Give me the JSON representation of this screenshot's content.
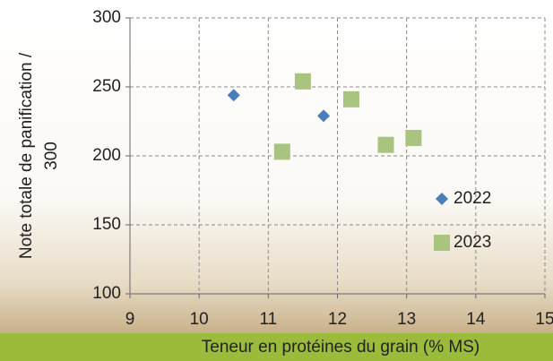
{
  "chart_data": {
    "type": "scatter",
    "x_label": "Teneur en protéines du grain (% MS)",
    "y_label": [
      "Note totale de panification /",
      "300"
    ],
    "xlim": [
      9,
      15
    ],
    "xticks": [
      9,
      10,
      11,
      12,
      13,
      14,
      15
    ],
    "ylim": [
      100,
      300
    ],
    "yticks": [
      100,
      150,
      200,
      250,
      300
    ],
    "grid": true,
    "series": [
      {
        "name": "2022",
        "color": "#4a7ebb",
        "marker": "diamond",
        "x": [
          10.5,
          11.8
        ],
        "values": [
          244,
          229
        ]
      },
      {
        "name": "2023",
        "color": "#a9c47f",
        "marker": "square",
        "x": [
          11.5,
          11.2,
          12.2,
          12.7,
          13.1
        ],
        "values": [
          254,
          203,
          241,
          208,
          213
        ]
      }
    ]
  }
}
